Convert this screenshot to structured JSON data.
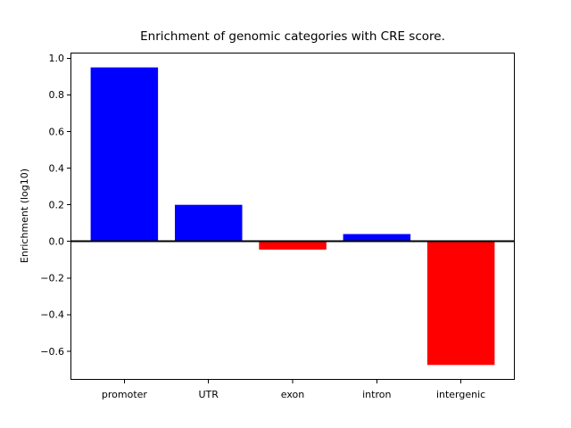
{
  "figure": {
    "background": "#ffffff"
  },
  "chart_data": {
    "type": "bar",
    "title": "Enrichment of genomic categories with CRE score.",
    "xlabel": "",
    "ylabel": "Enrichment (log10)",
    "categories": [
      "promoter",
      "UTR",
      "exon",
      "intron",
      "intergenic"
    ],
    "values": [
      0.95,
      0.2,
      -0.045,
      0.04,
      -0.675
    ],
    "bar_colors": [
      "#0000ff",
      "#0000ff",
      "#ff0000",
      "#0000ff",
      "#ff0000"
    ],
    "positive_color": "#0000ff",
    "negative_color": "#ff0000",
    "yticks": [
      1.0,
      0.8,
      0.6,
      0.4,
      0.2,
      0.0,
      -0.2,
      -0.4,
      -0.6
    ],
    "ytick_labels": [
      "1.0",
      "0.8",
      "0.6",
      "0.4",
      "0.2",
      "0.0",
      "−0.2",
      "−0.4",
      "−0.6"
    ],
    "ylim": [
      -0.756,
      1.031
    ],
    "xlim": [
      -0.64,
      4.64
    ],
    "bar_width_fraction": 0.8,
    "grid": false,
    "legend": null,
    "zero_line": true,
    "axis_color": "#000000",
    "background": "#ffffff"
  }
}
